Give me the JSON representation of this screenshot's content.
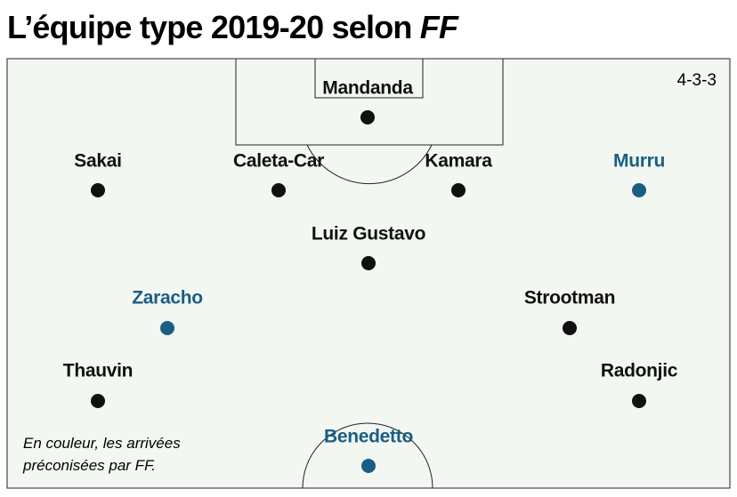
{
  "header": {
    "title": "L’équipe type 2019-20 selon",
    "title_emphasis": "FF"
  },
  "formation": "4-3-3",
  "players": [
    {
      "name": "Mandanda",
      "color": "#111111"
    },
    {
      "name": "Sakai",
      "color": "#111111"
    },
    {
      "name": "Caleta-Car",
      "color": "#111111"
    },
    {
      "name": "Kamara",
      "color": "#111111"
    },
    {
      "name": "Murru",
      "color": "#1b5e84"
    },
    {
      "name": "Luiz Gustavo",
      "color": "#111111"
    },
    {
      "name": "Zaracho",
      "color": "#1b5e84"
    },
    {
      "name": "Strootman",
      "color": "#111111"
    },
    {
      "name": "Thauvin",
      "color": "#111111"
    },
    {
      "name": "Radonjic",
      "color": "#111111"
    },
    {
      "name": "Benedetto",
      "color": "#1b5e84"
    }
  ],
  "note": {
    "lines": [
      "En couleur, les arrivées",
      "préconisées par FF."
    ]
  }
}
